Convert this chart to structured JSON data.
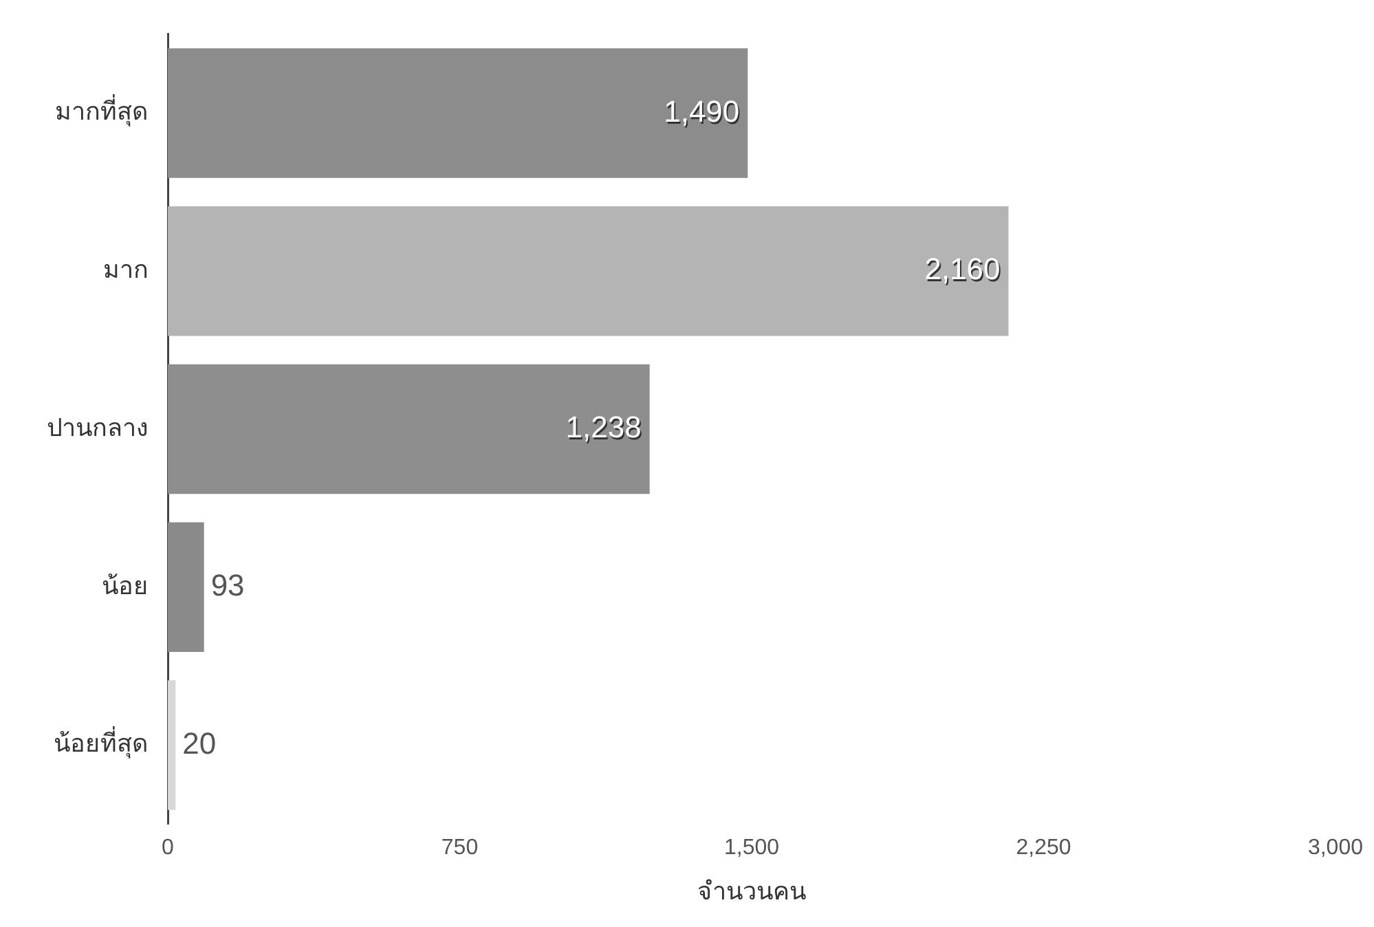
{
  "chart_data": {
    "type": "bar",
    "orientation": "horizontal",
    "categories": [
      "มากที่สุด",
      "มาก",
      "ปานกลาง",
      "น้อย",
      "น้อยที่สุด"
    ],
    "values": [
      1490,
      2160,
      1238,
      93,
      20
    ],
    "colors": [
      "#8c8c8c",
      "#b4b4b4",
      "#8e8e8e",
      "#8a8a8a",
      "#d8d8d8"
    ],
    "value_labels": [
      "1,490",
      "2,160",
      "1,238",
      "93",
      "20"
    ],
    "xlabel": "จำนวนคน",
    "xlim": [
      0,
      3000
    ],
    "xticks": [
      0,
      750,
      {
        "value": 1500,
        "label": "1,500"
      },
      {
        "value": 2250,
        "label": "2,250"
      },
      {
        "value": 3000,
        "label": "3,000"
      }
    ],
    "grid": false,
    "legend": false
  }
}
